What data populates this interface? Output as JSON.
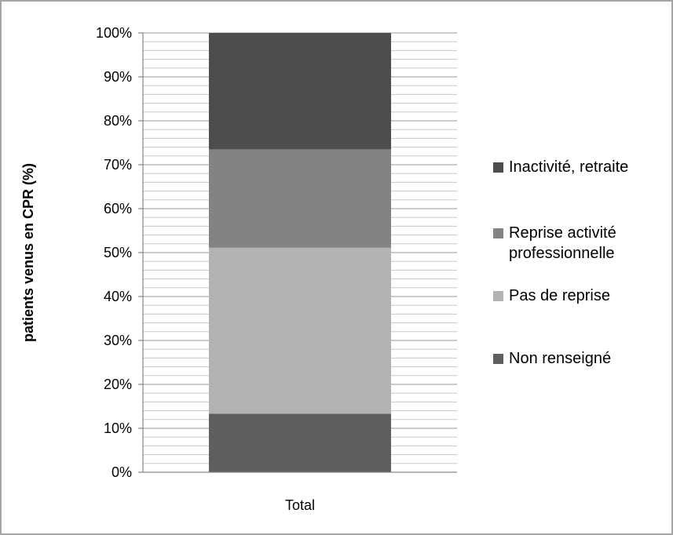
{
  "chart_data": {
    "type": "bar",
    "stacked": true,
    "percent_stacked": true,
    "categories": [
      "Total"
    ],
    "series": [
      {
        "name": "Non renseigné",
        "values": [
          13.3
        ],
        "color": "#5f5f5f"
      },
      {
        "name": "Pas de reprise",
        "values": [
          37.8
        ],
        "color": "#b3b3b3"
      },
      {
        "name": "Reprise activité professionnelle",
        "values": [
          22.4
        ],
        "color": "#838383"
      },
      {
        "name": "Inactivité, retraite",
        "values": [
          26.5
        ],
        "color": "#4d4d4d"
      }
    ],
    "legend_order": [
      "Inactivité, retraite",
      "Reprise activité professionnelle",
      "Pas de reprise",
      "Non renseigné"
    ],
    "legend_lines": [
      [
        "Inactivité, retraite"
      ],
      [
        "Reprise activité",
        "professionnelle"
      ],
      [
        "Pas de reprise"
      ],
      [
        "Non renseigné"
      ]
    ],
    "ylabel": "patients venus en CPR (%)",
    "xlabel": "",
    "ylim": [
      0,
      100
    ],
    "yticks": [
      "0%",
      "10%",
      "20%",
      "30%",
      "40%",
      "50%",
      "60%",
      "70%",
      "80%",
      "90%",
      "100%"
    ],
    "minor_grid_step": 2,
    "grid": true,
    "legend_position": "right"
  }
}
